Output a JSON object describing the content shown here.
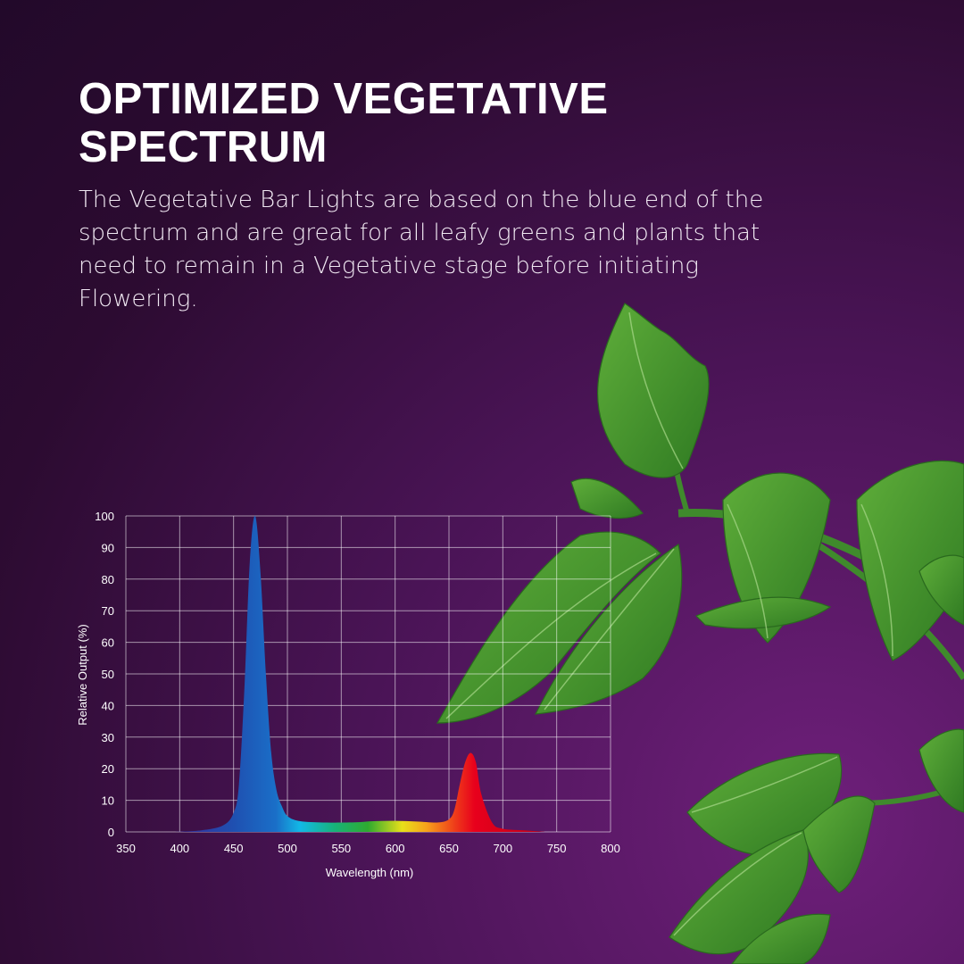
{
  "header": {
    "title": "OPTIMIZED VEGETATIVE SPECTRUM",
    "description": "The Vegetative Bar Lights are based on the blue end of the spectrum and are great for all leafy greens and plants that need to remain in a Vegetative stage before initiating Flowering."
  },
  "colors": {
    "background": "#4a1456",
    "leaf": "#3f8f2a",
    "blue_peak": "#1f5fb0",
    "red_peak": "#e8001c"
  },
  "chart_data": {
    "type": "area",
    "title": "",
    "xlabel": "Wavelength (nm)",
    "ylabel": "Relative Output (%)",
    "xlim": [
      350,
      800
    ],
    "ylim": [
      0,
      100
    ],
    "grid": true,
    "x_ticks": [
      350,
      400,
      450,
      500,
      550,
      600,
      650,
      700,
      750,
      800
    ],
    "y_ticks": [
      0,
      10,
      20,
      30,
      40,
      50,
      60,
      70,
      80,
      90,
      100
    ],
    "fill": "visible-spectrum gradient",
    "x": [
      395,
      420,
      440,
      450,
      455,
      460,
      465,
      470,
      475,
      480,
      485,
      490,
      495,
      500,
      510,
      530,
      560,
      580,
      600,
      620,
      640,
      650,
      655,
      660,
      665,
      670,
      675,
      680,
      690,
      700,
      720,
      740
    ],
    "y": [
      0,
      0.5,
      2,
      6,
      15,
      45,
      85,
      100,
      82,
      50,
      25,
      13,
      8,
      5,
      3.5,
      3,
      3,
      3.4,
      3.5,
      3.3,
      3,
      4,
      7,
      15,
      22,
      25,
      22,
      12,
      3,
      1,
      0.5,
      0
    ]
  },
  "plant": {
    "description_icon": "plant-leaves-icon"
  }
}
